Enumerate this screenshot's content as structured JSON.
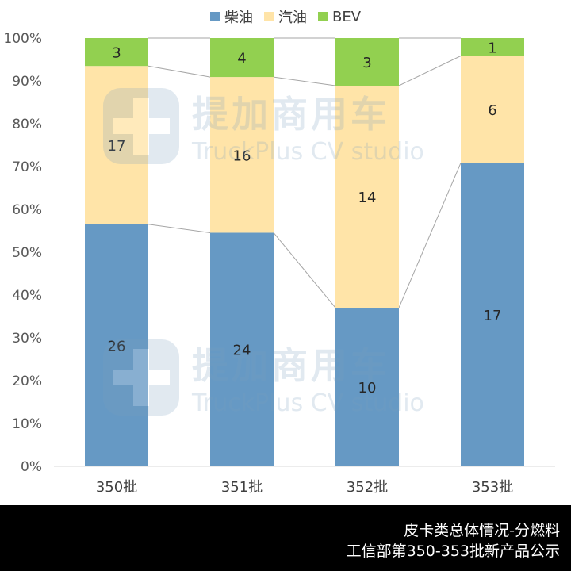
{
  "chart_data": {
    "type": "bar",
    "stacked": true,
    "normalized": true,
    "categories": [
      "350批",
      "351批",
      "352批",
      "353批"
    ],
    "series": [
      {
        "name": "柴油",
        "values": [
          26,
          24,
          10,
          17
        ],
        "color": "#6699c4"
      },
      {
        "name": "汽油",
        "values": [
          17,
          16,
          14,
          6
        ],
        "color": "#ffe4a8"
      },
      {
        "name": "BEV",
        "values": [
          3,
          4,
          3,
          1
        ],
        "color": "#92d050"
      }
    ],
    "y_ticks": [
      "0%",
      "10%",
      "20%",
      "30%",
      "40%",
      "50%",
      "60%",
      "70%",
      "80%",
      "90%",
      "100%"
    ],
    "ylim": [
      0,
      100
    ],
    "grid": false,
    "legend_position": "top-center",
    "series_lines": true
  },
  "footer": {
    "line1": "皮卡类总体情况-分燃料",
    "line2": "工信部第350-353批新产品公示"
  },
  "watermark": {
    "cn": "提加商用车",
    "en": "TruckPlus CV studio"
  }
}
